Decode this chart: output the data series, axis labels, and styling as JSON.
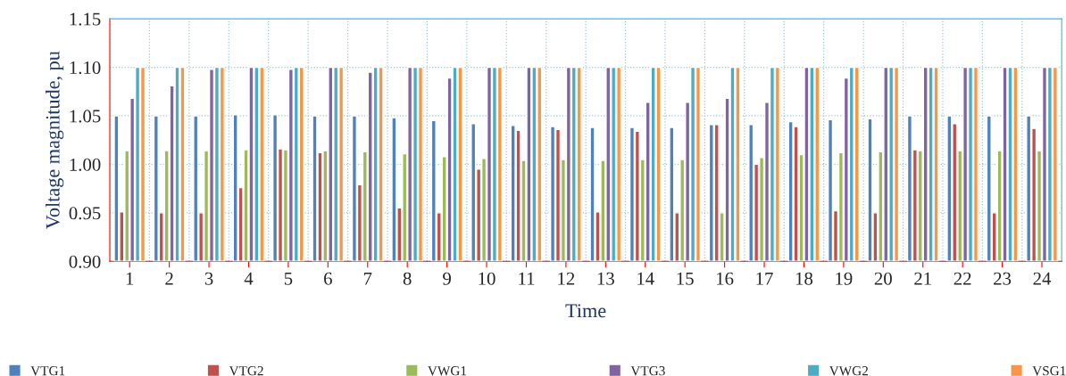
{
  "chart_data": {
    "type": "bar",
    "xlabel": "Time",
    "ylabel": "Voltage magnitude, pu",
    "categories": [
      "1",
      "2",
      "3",
      "4",
      "5",
      "6",
      "7",
      "8",
      "9",
      "10",
      "11",
      "12",
      "13",
      "14",
      "15",
      "16",
      "17",
      "18",
      "19",
      "20",
      "21",
      "22",
      "23",
      "24"
    ],
    "series": [
      {
        "name": "VTG1",
        "color": "#4f81bd",
        "values": [
          1.05,
          1.05,
          1.05,
          1.051,
          1.051,
          1.05,
          1.05,
          1.048,
          1.045,
          1.042,
          1.04,
          1.039,
          1.038,
          1.038,
          1.038,
          1.041,
          1.041,
          1.044,
          1.046,
          1.047,
          1.05,
          1.05,
          1.05,
          1.05
        ]
      },
      {
        "name": "VTG2",
        "color": "#c0504d",
        "values": [
          0.951,
          0.95,
          0.95,
          0.976,
          1.016,
          1.012,
          0.979,
          0.955,
          0.95,
          0.995,
          1.035,
          1.036,
          0.951,
          1.034,
          0.95,
          1.041,
          1.0,
          1.039,
          0.952,
          0.95,
          1.015,
          1.042,
          0.95,
          1.037
        ]
      },
      {
        "name": "VWG1",
        "color": "#9bbb59",
        "values": [
          1.014,
          1.014,
          1.014,
          1.015,
          1.015,
          1.014,
          1.013,
          1.011,
          1.008,
          1.006,
          1.004,
          1.005,
          1.004,
          1.005,
          1.005,
          0.95,
          1.007,
          1.01,
          1.012,
          1.013,
          1.014,
          1.014,
          1.014,
          1.014
        ]
      },
      {
        "name": "VTG3",
        "color": "#8064a2",
        "values": [
          1.068,
          1.081,
          1.098,
          1.1,
          1.098,
          1.1,
          1.095,
          1.1,
          1.089,
          1.1,
          1.1,
          1.1,
          1.1,
          1.064,
          1.064,
          1.068,
          1.064,
          1.1,
          1.089,
          1.1,
          1.1,
          1.1,
          1.1,
          1.1
        ]
      },
      {
        "name": "VWG2",
        "color": "#4bacc6",
        "values": [
          1.1,
          1.1,
          1.1,
          1.1,
          1.1,
          1.1,
          1.1,
          1.1,
          1.1,
          1.1,
          1.1,
          1.1,
          1.1,
          1.1,
          1.1,
          1.1,
          1.1,
          1.1,
          1.1,
          1.1,
          1.1,
          1.1,
          1.1,
          1.1
        ]
      },
      {
        "name": "VSG1",
        "color": "#f79646",
        "values": [
          1.1,
          1.1,
          1.1,
          1.1,
          1.1,
          1.1,
          1.1,
          1.1,
          1.1,
          1.1,
          1.1,
          1.1,
          1.1,
          1.1,
          1.1,
          1.1,
          1.1,
          1.1,
          1.1,
          1.1,
          1.1,
          1.1,
          1.1,
          1.1
        ]
      }
    ],
    "ylim": [
      0.9,
      1.15
    ],
    "yticks": [
      {
        "value": 0.9,
        "label": "0.90"
      },
      {
        "value": 0.95,
        "label": "0.95"
      },
      {
        "value": 1.0,
        "label": "1.00"
      },
      {
        "value": 1.05,
        "label": "1.05"
      },
      {
        "value": 1.1,
        "label": "1.10"
      },
      {
        "value": 1.15,
        "label": "1.15"
      }
    ],
    "grid": true,
    "legend": "bottom"
  }
}
